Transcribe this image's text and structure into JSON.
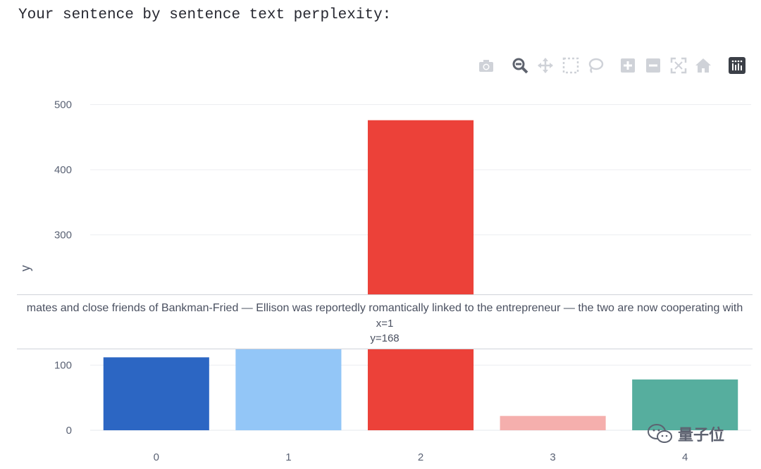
{
  "heading": "Your sentence by sentence text perplexity:",
  "modebar": {
    "icons": [
      "camera-icon",
      "zoom-icon",
      "pan-icon",
      "box-select-icon",
      "lasso-select-icon",
      "zoom-in-icon",
      "zoom-out-icon",
      "autoscale-icon",
      "reset-axes-icon",
      "plotly-logo-icon"
    ]
  },
  "chart_data": {
    "type": "bar",
    "categories": [
      "0",
      "1",
      "2",
      "3",
      "4"
    ],
    "values": [
      112,
      168,
      476,
      22,
      78
    ],
    "colors": [
      "#2c66c3",
      "#93c6f7",
      "#ec4139",
      "#f5afad",
      "#56ae9e"
    ],
    "ylabel": "y",
    "xlabel": "",
    "ylim": [
      0,
      520
    ],
    "yticks": [
      0,
      100,
      300,
      400,
      500
    ],
    "grid": true
  },
  "hover": {
    "text": "mates and close friends of Bankman-Fried — Ellison was reportedly romantically linked to the entrepreneur — the two are now cooperating with",
    "x_line": "x=1",
    "y_line": "y=168"
  },
  "watermark": {
    "text": "量子位"
  }
}
